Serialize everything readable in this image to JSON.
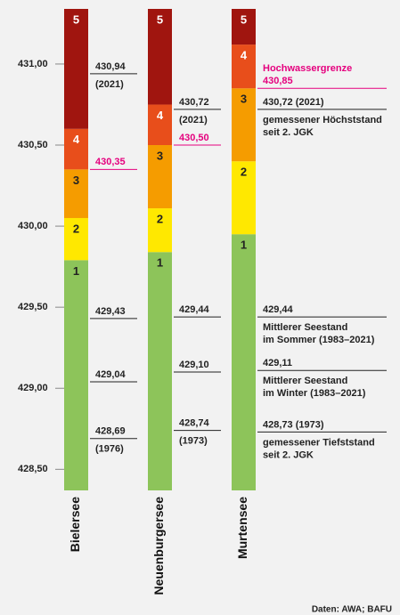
{
  "chart_data": {
    "type": "bar",
    "categories": [
      "Bielersee",
      "Neuenburgersee",
      "Murtensee"
    ],
    "series": [
      {
        "name": "1",
        "color": "#8dc45a",
        "values": [
          429.79,
          429.84,
          429.95
        ]
      },
      {
        "name": "2",
        "color": "#ffe800",
        "values": [
          430.05,
          430.11,
          430.4
        ]
      },
      {
        "name": "3",
        "color": "#f59c00",
        "values": [
          430.35,
          430.5,
          430.85
        ]
      },
      {
        "name": "4",
        "color": "#e84e1b",
        "values": [
          430.6,
          430.75,
          431.12
        ]
      },
      {
        "name": "5",
        "color": "#a0150f",
        "values": [
          431.34,
          431.34,
          431.34
        ]
      }
    ],
    "ylim": [
      428.37,
      431.34
    ],
    "yticks": [
      {
        "value": 428.5,
        "label": "428,50"
      },
      {
        "value": 429,
        "label": "429,00"
      },
      {
        "value": 429.5,
        "label": "429,50"
      },
      {
        "value": 430,
        "label": "430,00"
      },
      {
        "value": 430.5,
        "label": "430,50"
      },
      {
        "value": 431,
        "label": "431,00"
      }
    ],
    "annotations": [
      [
        {
          "value": 430.94,
          "label": "430,94",
          "note": [
            "(2021)"
          ],
          "color": "#222"
        },
        {
          "value": 430.35,
          "label": "430,35",
          "color": "#e5007e"
        },
        {
          "value": 429.43,
          "label": "429,43",
          "color": "#222"
        },
        {
          "value": 429.04,
          "label": "429,04",
          "color": "#222"
        },
        {
          "value": 428.69,
          "label": "428,69",
          "note": [
            "(1976)"
          ],
          "color": "#222"
        }
      ],
      [
        {
          "value": 430.72,
          "label": "430,72",
          "note": [
            "(2021)"
          ],
          "color": "#222"
        },
        {
          "value": 430.5,
          "label": "430,50",
          "color": "#e5007e"
        },
        {
          "value": 429.44,
          "label": "429,44",
          "color": "#222"
        },
        {
          "value": 429.1,
          "label": "429,10",
          "color": "#222"
        },
        {
          "value": 428.74,
          "label": "428,74",
          "note": [
            "(1973)"
          ],
          "color": "#222"
        }
      ],
      [
        {
          "value": 430.85,
          "heading": "Hochwassergrenze",
          "label": "430,85",
          "color": "#e5007e"
        },
        {
          "value": 430.72,
          "label": "430,72 (2021)",
          "note": [
            "gemessener Höchststand",
            "seit 2. JGK"
          ],
          "color": "#222"
        },
        {
          "value": 429.44,
          "label": "429,44",
          "note": [
            "Mittlerer Seestand",
            "im Sommer (1983–2021)"
          ],
          "color": "#222"
        },
        {
          "value": 429.11,
          "label": "429,11",
          "note": [
            "Mittlerer Seestand",
            "im Winter (1983–2021)"
          ],
          "color": "#222"
        },
        {
          "value": 428.73,
          "label": "428,73 (1973)",
          "note": [
            "gemessener Tiefststand",
            "seit 2. JGK"
          ],
          "color": "#222"
        }
      ]
    ],
    "source": "Daten: AWA; BAFU"
  }
}
